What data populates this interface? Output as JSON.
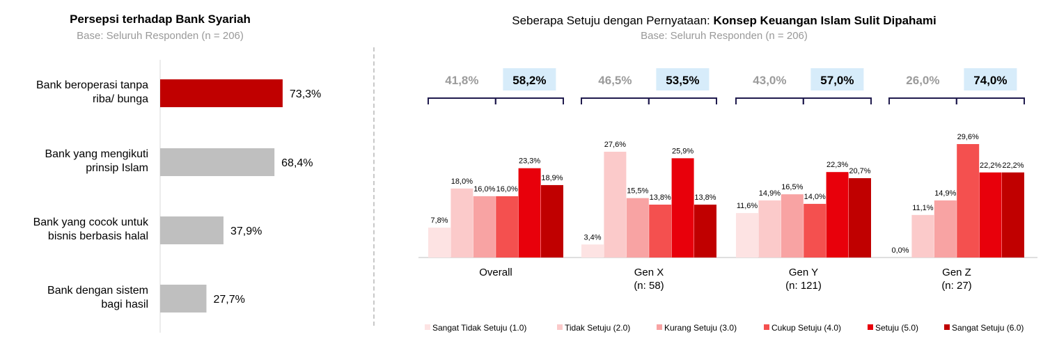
{
  "chart_data": [
    {
      "type": "bar",
      "orientation": "horizontal",
      "title": "Persepsi terhadap Bank Syariah",
      "subtitle": "Base: Seluruh Responden (n = 206)",
      "categories": [
        [
          "Bank beroperasi tanpa",
          "riba/ bunga"
        ],
        [
          "Bank yang mengikuti",
          "prinsip Islam"
        ],
        [
          "Bank yang cocok untuk",
          "bisnis berbasis halal"
        ],
        [
          "Bank dengan sistem",
          "bagi hasil"
        ]
      ],
      "values": [
        73.3,
        68.4,
        37.9,
        27.7
      ],
      "value_labels": [
        "73,3%",
        "68,4%",
        "37,9%",
        "27,7%"
      ],
      "colors": [
        "#c00000",
        "#bfbfbf",
        "#bfbfbf",
        "#bfbfbf"
      ],
      "xlim": [
        0,
        100
      ]
    },
    {
      "type": "bar",
      "title_prefix": "Seberapa Setuju dengan Pernyataan: ",
      "title_bold": "Konsep Keuangan Islam Sulit Dipahami",
      "subtitle": "Base: Seluruh Responden (n = 206)",
      "groups": [
        {
          "name": "Overall",
          "sub": ""
        },
        {
          "name": "Gen X",
          "sub": "(n: 58)"
        },
        {
          "name": "Gen Y",
          "sub": "(n: 121)"
        },
        {
          "name": "Gen Z",
          "sub": "(n: 27)"
        }
      ],
      "series": [
        {
          "name": "Sangat Tidak Setuju (1.0)",
          "color": "#fde3e3",
          "values": [
            7.8,
            3.4,
            11.6,
            0.0
          ],
          "labels": [
            "7,8%",
            "3,4%",
            "11,6%",
            "0,0%"
          ]
        },
        {
          "name": "Tidak Setuju (2.0)",
          "color": "#fbcaca",
          "values": [
            18.0,
            27.6,
            14.9,
            11.1
          ],
          "labels": [
            "18,0%",
            "27,6%",
            "14,9%",
            "11,1%"
          ]
        },
        {
          "name": "Kurang Setuju (3.0)",
          "color": "#f8a3a3",
          "values": [
            16.0,
            15.5,
            16.5,
            14.9
          ],
          "labels": [
            "16,0%",
            "15,5%",
            "16,5%",
            "14,9%"
          ]
        },
        {
          "name": "Cukup Setuju (4.0)",
          "color": "#f4504f",
          "values": [
            16.0,
            13.8,
            14.0,
            29.6
          ],
          "labels": [
            "16,0%",
            "13,8%",
            "14,0%",
            "29,6%"
          ]
        },
        {
          "name": "Setuju (5.0)",
          "color": "#e8000b",
          "values": [
            23.3,
            25.9,
            22.3,
            22.2
          ],
          "labels": [
            "23,3%",
            "25,9%",
            "22,3%",
            "22,2%"
          ]
        },
        {
          "name": "Sangat Setuju (6.0)",
          "color": "#c00000",
          "values": [
            18.9,
            13.8,
            20.7,
            22.2
          ],
          "labels": [
            "18,9%",
            "13,8%",
            "20,7%",
            "22,2%"
          ]
        }
      ],
      "summary": [
        {
          "disagree": "41,8%",
          "agree": "58,2%"
        },
        {
          "disagree": "46,5%",
          "agree": "53,5%"
        },
        {
          "disagree": "43,0%",
          "agree": "57,0%"
        },
        {
          "disagree": "26,0%",
          "agree": "74,0%"
        }
      ],
      "ylim": [
        0,
        30
      ],
      "legend": "bottom"
    }
  ]
}
